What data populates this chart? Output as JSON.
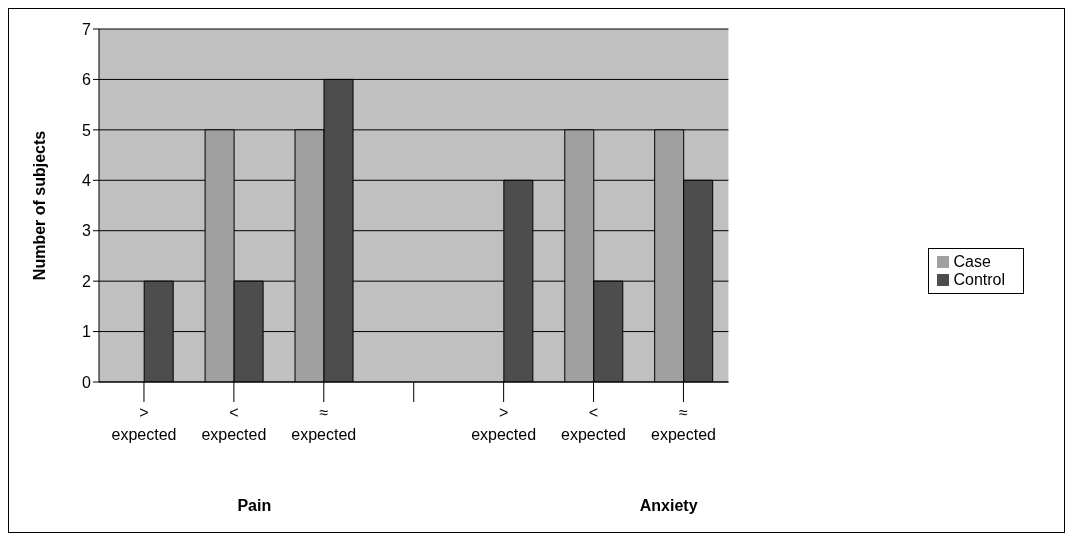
{
  "chart_data": {
    "type": "bar",
    "ylabel": "Number of subjects",
    "categories": [
      "> expected",
      "< expected",
      "≈ expected",
      null,
      "> expected",
      "< expected",
      "≈ expected"
    ],
    "series": [
      {
        "name": "Case",
        "color": "#a0a0a0",
        "values": [
          0,
          5,
          5,
          null,
          0,
          5,
          5
        ]
      },
      {
        "name": "Control",
        "color": "#4d4d4d",
        "values": [
          2,
          2,
          6,
          null,
          4,
          2,
          4
        ]
      }
    ],
    "ylim": [
      0,
      7
    ],
    "yticks": [
      0,
      1,
      2,
      3,
      4,
      5,
      6,
      7
    ],
    "grid": "y",
    "legend": "right",
    "annotations": [
      "Pain",
      "Anxiety"
    ]
  }
}
